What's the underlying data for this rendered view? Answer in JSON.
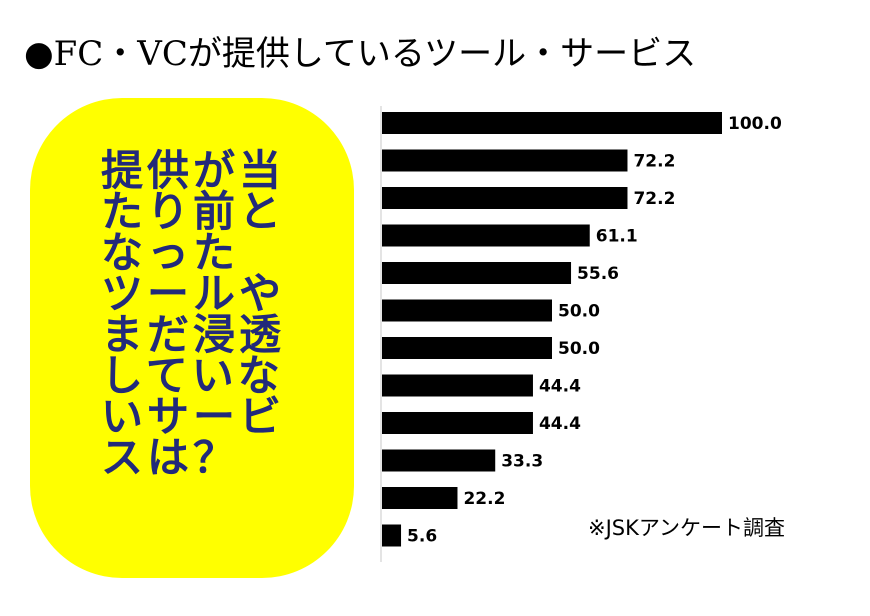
{
  "header": {
    "title": "●FC・VCが提供しているツール・サービス"
  },
  "callout": {
    "text": "提供が当\nたり前と\nなった\nツールや\nまだ浸透\nしていな\nいサービ\nスは？"
  },
  "footnote": "※JSKアンケート調査",
  "colors": {
    "bar": "#000000",
    "callout_bg": "#ffff00",
    "callout_text": "#222a7a"
  },
  "chart_data": {
    "type": "bar",
    "orientation": "horizontal",
    "values": [
      100.0,
      72.2,
      72.2,
      61.1,
      55.6,
      50.0,
      50.0,
      44.4,
      44.4,
      33.3,
      22.2,
      5.6
    ],
    "value_labels": [
      "100.0",
      "72.2",
      "72.2",
      "61.1",
      "55.6",
      "50.0",
      "50.0",
      "44.4",
      "44.4",
      "33.3",
      "22.2",
      "5.6"
    ],
    "xlim": [
      0,
      100
    ],
    "grid": false,
    "legend": "none"
  }
}
